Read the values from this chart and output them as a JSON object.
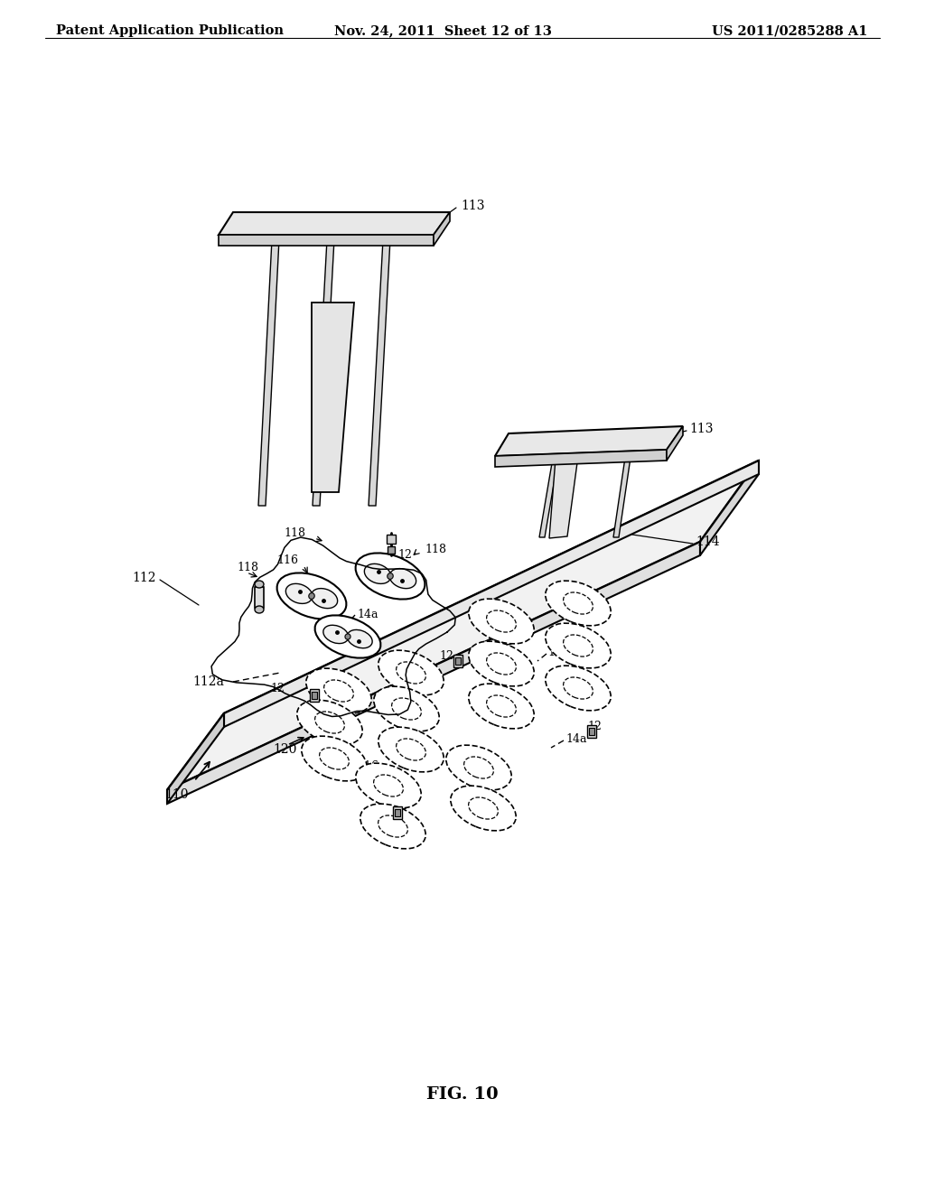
{
  "background_color": "#ffffff",
  "header_left": "Patent Application Publication",
  "header_center": "Nov. 24, 2011  Sheet 12 of 13",
  "header_right": "US 2011/0285288 A1",
  "figure_label": "FIG. 10",
  "header_fontsize": 11,
  "figure_label_fontsize": 14
}
